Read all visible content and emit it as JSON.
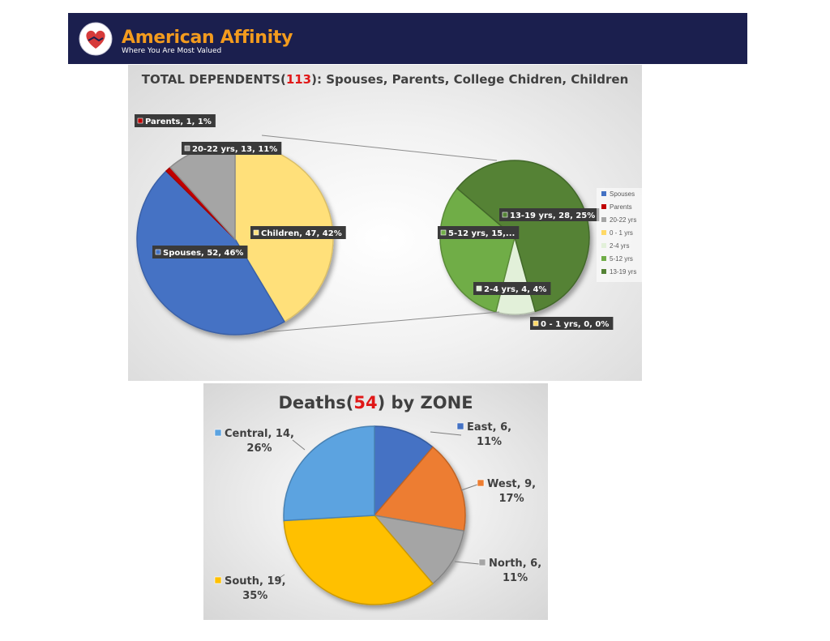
{
  "brand": {
    "name": "American Affinity",
    "tagline": "Where You Are Most Valued",
    "logo_text": "American Affinity"
  },
  "chart_data": [
    {
      "type": "pie",
      "subtype": "pie-of-pie",
      "title_prefix": "TOTAL DEPENDENTS(",
      "title_total": "113",
      "title_suffix": "): Spouses, Parents, College Chidren, Children",
      "colors": {
        "title_total": "#e01818"
      },
      "main": [
        {
          "name": "Spouses",
          "value": 52,
          "label": "Spouses, 52, 46%",
          "color": "#4472c4"
        },
        {
          "name": "Parents",
          "value": 1,
          "label": "Parents, 1, 1%",
          "color": "#c00000"
        },
        {
          "name": "20-22 yrs",
          "value": 13,
          "label": "20-22 yrs, 13, 11%",
          "color": "#a5a5a5"
        },
        {
          "name": "Children",
          "value": 47,
          "label": "Children, 47, 42%",
          "color": "#ffe07a"
        }
      ],
      "secondary": [
        {
          "name": "0 - 1 yrs",
          "value": 0,
          "label": "0 - 1 yrs, 0, 0%",
          "color": "#ffd966"
        },
        {
          "name": "2-4 yrs",
          "value": 4,
          "label": "2-4 yrs, 4, 4%",
          "color": "#e2f0d9"
        },
        {
          "name": "5-12 yrs",
          "value": 15,
          "label": "5-12 yrs, 15,...",
          "color": "#70ad47"
        },
        {
          "name": "13-19 yrs",
          "value": 28,
          "label": "13-19 yrs, 28, 25%",
          "color": "#548235"
        }
      ],
      "legend": [
        {
          "name": "Spouses",
          "color": "#4472c4"
        },
        {
          "name": "Parents",
          "color": "#c00000"
        },
        {
          "name": "20-22 yrs",
          "color": "#a5a5a5"
        },
        {
          "name": "0 - 1 yrs",
          "color": "#ffd966"
        },
        {
          "name": "2-4 yrs",
          "color": "#e2f0d9"
        },
        {
          "name": "5-12 yrs",
          "color": "#70ad47"
        },
        {
          "name": "13-19 yrs",
          "color": "#548235"
        }
      ],
      "legend_position": "right"
    },
    {
      "type": "pie",
      "title_prefix": "Deaths(",
      "title_total": "54",
      "title_suffix": ") by ZONE",
      "colors": {
        "title_total": "#e01818"
      },
      "slices": [
        {
          "name": "East",
          "value": 6,
          "label_line1": "East, 6,",
          "label_line2": "11%",
          "color": "#4472c4"
        },
        {
          "name": "West",
          "value": 9,
          "label_line1": "West, 9,",
          "label_line2": "17%",
          "color": "#ed7d31"
        },
        {
          "name": "North",
          "value": 6,
          "label_line1": "North, 6,",
          "label_line2": "11%",
          "color": "#a5a5a5"
        },
        {
          "name": "South",
          "value": 19,
          "label_line1": "South, 19,",
          "label_line2": "35%",
          "color": "#ffc000"
        },
        {
          "name": "Central",
          "value": 14,
          "label_line1": "Central, 14,",
          "label_line2": "26%",
          "color": "#5ba3e0"
        }
      ],
      "legend": "none"
    }
  ]
}
